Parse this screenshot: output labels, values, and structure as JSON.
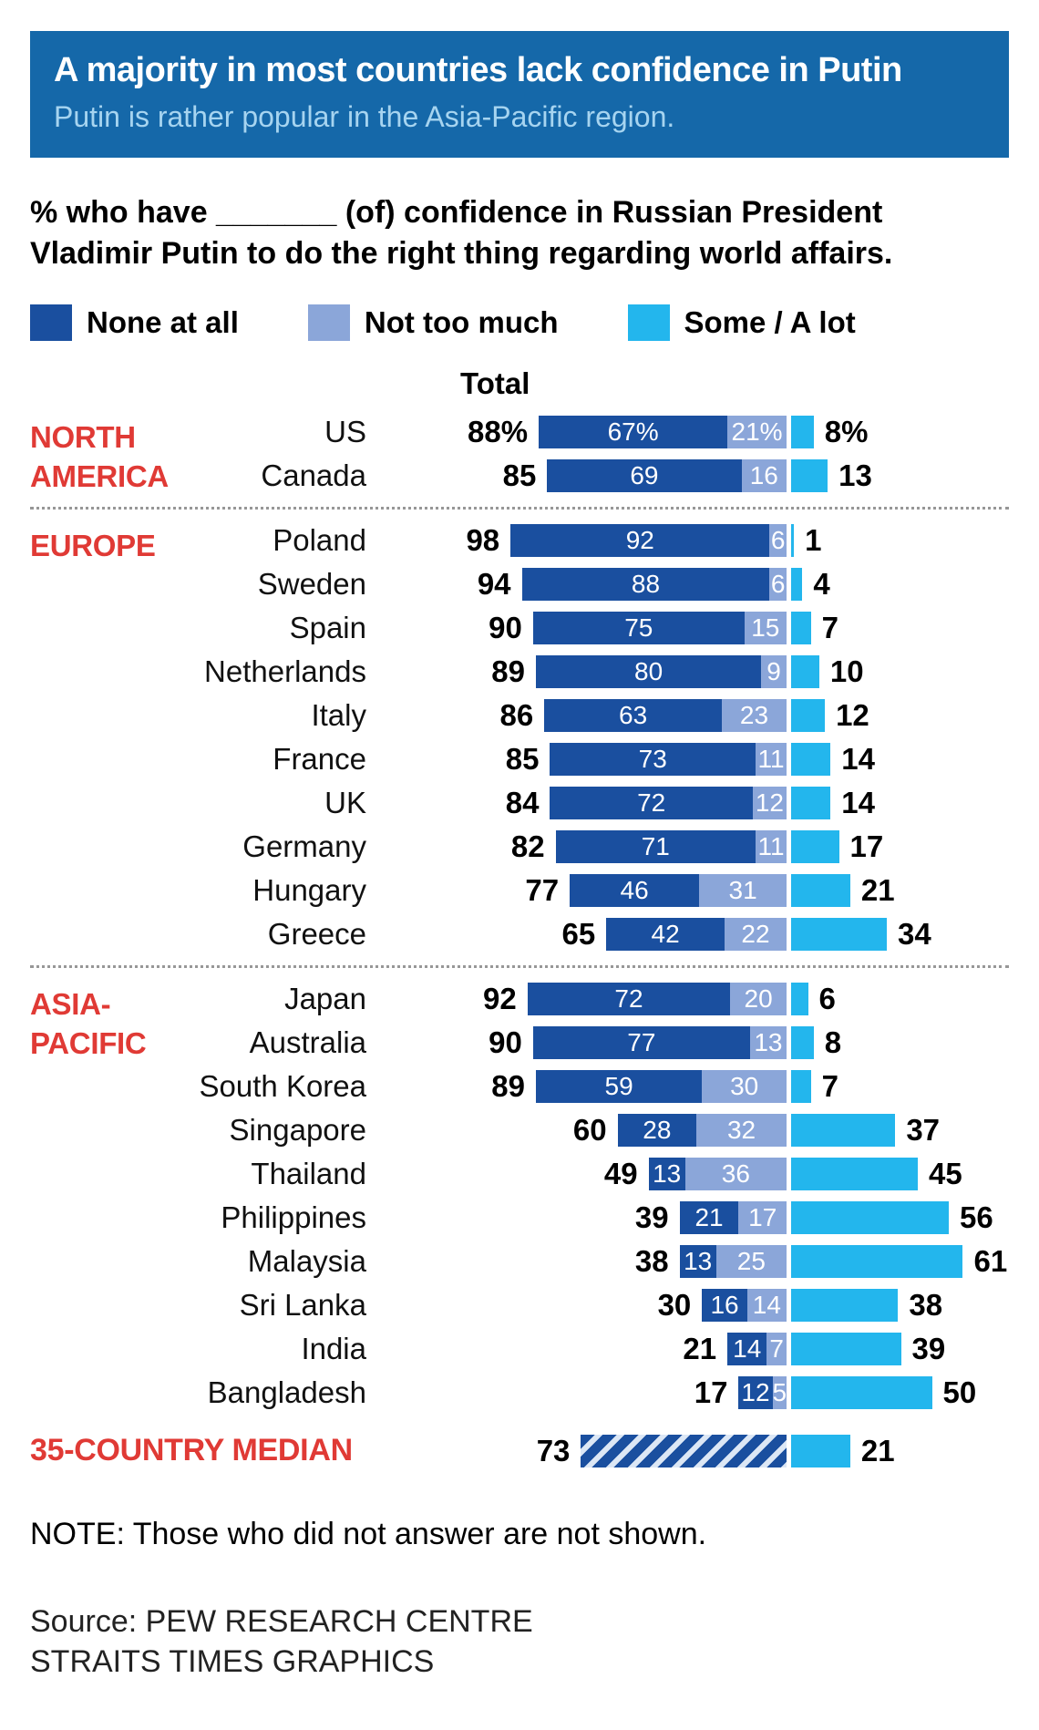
{
  "header": {
    "title": "A majority in most countries lack confidence in Putin",
    "subtitle": "Putin is rather popular in the Asia-Pacific region.",
    "bg_color": "#1568a9"
  },
  "question": {
    "line1": "% who have _______ (of) confidence in Russian President",
    "line2": "Vladimir Putin to do the right thing regarding world affairs."
  },
  "legend": {
    "items": [
      {
        "label": "None at all",
        "color": "#1a4f9f"
      },
      {
        "label": "Not too much",
        "color": "#8ba6d9"
      },
      {
        "label": "Some / A lot",
        "color": "#23b6ed"
      }
    ]
  },
  "chart_data": {
    "type": "bar",
    "variant": "diverging stacked bar; None at all + Not too much extend left of a common anchor, Some / A lot extends right",
    "unit": "%",
    "total_header": "Total",
    "series_names": [
      "None at all",
      "Not too much",
      "Some / A lot"
    ],
    "colors": {
      "none_at_all": "#1a4f9f",
      "not_too_much": "#8ba6d9",
      "some_a_lot": "#23b6ed",
      "region_label": "#e03a35"
    },
    "groups": [
      {
        "region": "NORTH AMERICA",
        "region_lines": [
          "NORTH",
          "AMERICA"
        ],
        "rows": [
          {
            "country": "US",
            "total_label": "88%",
            "none_at_all": 67,
            "not_too_much": 21,
            "some_a_lot": 8,
            "percent_signs": true
          },
          {
            "country": "Canada",
            "total_label": "85",
            "none_at_all": 69,
            "not_too_much": 16,
            "some_a_lot": 13,
            "percent_signs": false
          }
        ]
      },
      {
        "region": "EUROPE",
        "region_lines": [
          "EUROPE"
        ],
        "rows": [
          {
            "country": "Poland",
            "total_label": "98",
            "none_at_all": 92,
            "not_too_much": 6,
            "some_a_lot": 1,
            "percent_signs": false
          },
          {
            "country": "Sweden",
            "total_label": "94",
            "none_at_all": 88,
            "not_too_much": 6,
            "some_a_lot": 4,
            "percent_signs": false
          },
          {
            "country": "Spain",
            "total_label": "90",
            "none_at_all": 75,
            "not_too_much": 15,
            "some_a_lot": 7,
            "percent_signs": false
          },
          {
            "country": "Netherlands",
            "total_label": "89",
            "none_at_all": 80,
            "not_too_much": 9,
            "some_a_lot": 10,
            "percent_signs": false
          },
          {
            "country": "Italy",
            "total_label": "86",
            "none_at_all": 63,
            "not_too_much": 23,
            "some_a_lot": 12,
            "percent_signs": false
          },
          {
            "country": "France",
            "total_label": "85",
            "none_at_all": 73,
            "not_too_much": 11,
            "some_a_lot": 14,
            "percent_signs": false
          },
          {
            "country": "UK",
            "total_label": "84",
            "none_at_all": 72,
            "not_too_much": 12,
            "some_a_lot": 14,
            "percent_signs": false
          },
          {
            "country": "Germany",
            "total_label": "82",
            "none_at_all": 71,
            "not_too_much": 11,
            "some_a_lot": 17,
            "percent_signs": false
          },
          {
            "country": "Hungary",
            "total_label": "77",
            "none_at_all": 46,
            "not_too_much": 31,
            "some_a_lot": 21,
            "percent_signs": false
          },
          {
            "country": "Greece",
            "total_label": "65",
            "none_at_all": 42,
            "not_too_much": 22,
            "some_a_lot": 34,
            "percent_signs": false
          }
        ]
      },
      {
        "region": "ASIA-PACIFIC",
        "region_lines": [
          "ASIA-",
          "PACIFIC"
        ],
        "rows": [
          {
            "country": "Japan",
            "total_label": "92",
            "none_at_all": 72,
            "not_too_much": 20,
            "some_a_lot": 6,
            "percent_signs": false
          },
          {
            "country": "Australia",
            "total_label": "90",
            "none_at_all": 77,
            "not_too_much": 13,
            "some_a_lot": 8,
            "percent_signs": false
          },
          {
            "country": "South Korea",
            "total_label": "89",
            "none_at_all": 59,
            "not_too_much": 30,
            "some_a_lot": 7,
            "percent_signs": false
          },
          {
            "country": "Singapore",
            "total_label": "60",
            "none_at_all": 28,
            "not_too_much": 32,
            "some_a_lot": 37,
            "percent_signs": false
          },
          {
            "country": "Thailand",
            "total_label": "49",
            "none_at_all": 13,
            "not_too_much": 36,
            "some_a_lot": 45,
            "percent_signs": false
          },
          {
            "country": "Philippines",
            "total_label": "39",
            "none_at_all": 21,
            "not_too_much": 17,
            "some_a_lot": 56,
            "percent_signs": false
          },
          {
            "country": "Malaysia",
            "total_label": "38",
            "none_at_all": 13,
            "not_too_much": 25,
            "some_a_lot": 61,
            "percent_signs": false
          },
          {
            "country": "Sri Lanka",
            "total_label": "30",
            "none_at_all": 16,
            "not_too_much": 14,
            "some_a_lot": 38,
            "percent_signs": false
          },
          {
            "country": "India",
            "total_label": "21",
            "none_at_all": 14,
            "not_too_much": 7,
            "some_a_lot": 39,
            "percent_signs": false
          },
          {
            "country": "Bangladesh",
            "total_label": "17",
            "none_at_all": 12,
            "not_too_much": 5,
            "some_a_lot": 50,
            "percent_signs": false
          }
        ]
      }
    ],
    "median": {
      "label": "35-COUNTRY MEDIAN",
      "total_label": "73",
      "none_value": 73,
      "some_value": 21,
      "some_label": "21",
      "style": "hatched"
    }
  },
  "note": "NOTE: Those who did not answer are not shown.",
  "source": {
    "line1": "Source: PEW RESEARCH CENTRE",
    "line2": "STRAITS TIMES GRAPHICS"
  }
}
